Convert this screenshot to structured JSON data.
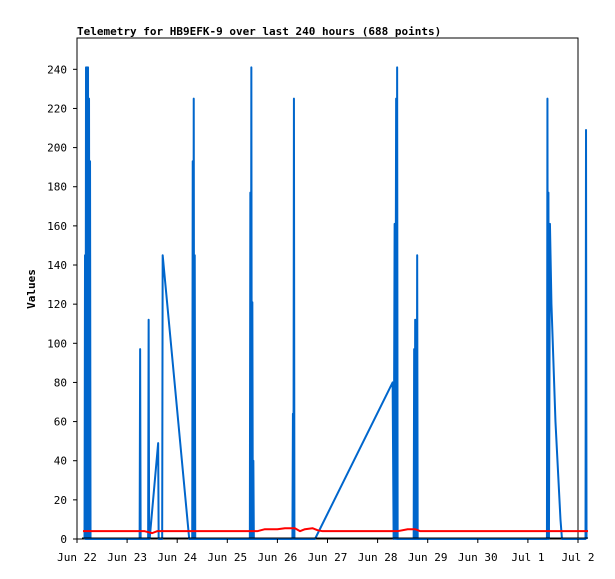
{
  "chart_data": {
    "type": "line",
    "title": "Telemetry for HB9EFK-9 over last 240 hours (688 points)",
    "ylabel": "Values",
    "xlabel": "",
    "x_categories": [
      "Jun 22",
      "Jun 23",
      "Jun 24",
      "Jun 25",
      "Jun 26",
      "Jun 27",
      "Jun 28",
      "Jun 29",
      "Jun 30",
      "Jul 1",
      "Jul 2"
    ],
    "xlim": [
      0,
      10
    ],
    "ylim": [
      0,
      256
    ],
    "yticks": [
      0,
      20,
      40,
      60,
      80,
      100,
      120,
      140,
      160,
      180,
      200,
      220,
      240
    ],
    "grid": false,
    "legend": "none",
    "series": [
      {
        "color": "#0066cc",
        "points": [
          [
            0.15,
            0
          ],
          [
            0.16,
            145
          ],
          [
            0.17,
            0
          ],
          [
            0.18,
            241
          ],
          [
            0.19,
            0
          ],
          [
            0.2,
            241
          ],
          [
            0.21,
            0
          ],
          [
            0.22,
            241
          ],
          [
            0.23,
            0
          ],
          [
            0.24,
            225
          ],
          [
            0.25,
            0
          ],
          [
            0.26,
            193
          ],
          [
            0.27,
            0
          ],
          [
            1.25,
            0
          ],
          [
            1.26,
            97
          ],
          [
            1.27,
            0
          ],
          [
            1.42,
            0
          ],
          [
            1.43,
            112
          ],
          [
            1.44,
            0
          ],
          [
            1.45,
            0
          ],
          [
            1.62,
            49
          ],
          [
            1.63,
            0
          ],
          [
            1.7,
            0
          ],
          [
            1.71,
            145
          ],
          [
            2.24,
            0
          ],
          [
            2.3,
            0
          ],
          [
            2.31,
            193
          ],
          [
            2.32,
            0
          ],
          [
            2.33,
            225
          ],
          [
            2.34,
            0
          ],
          [
            2.35,
            145
          ],
          [
            2.36,
            0
          ],
          [
            3.45,
            0
          ],
          [
            3.46,
            177
          ],
          [
            3.47,
            0
          ],
          [
            3.48,
            241
          ],
          [
            3.49,
            0
          ],
          [
            3.5,
            121
          ],
          [
            3.51,
            0
          ],
          [
            3.52,
            40
          ],
          [
            3.53,
            0
          ],
          [
            4.3,
            0
          ],
          [
            4.31,
            64
          ],
          [
            4.32,
            0
          ],
          [
            4.33,
            225
          ],
          [
            4.34,
            0
          ],
          [
            4.75,
            0
          ],
          [
            6.3,
            80
          ],
          [
            6.32,
            0
          ],
          [
            6.34,
            161
          ],
          [
            6.35,
            0
          ],
          [
            6.37,
            225
          ],
          [
            6.38,
            0
          ],
          [
            6.39,
            241
          ],
          [
            6.4,
            0
          ],
          [
            6.72,
            0
          ],
          [
            6.73,
            97
          ],
          [
            6.74,
            0
          ],
          [
            6.75,
            112
          ],
          [
            6.76,
            0
          ],
          [
            6.77,
            73
          ],
          [
            6.78,
            0
          ],
          [
            6.79,
            145
          ],
          [
            6.8,
            0
          ],
          [
            9.38,
            0
          ],
          [
            9.39,
            225
          ],
          [
            9.4,
            0
          ],
          [
            9.41,
            177
          ],
          [
            9.42,
            0
          ],
          [
            9.44,
            161
          ],
          [
            9.47,
            120
          ],
          [
            9.55,
            60
          ],
          [
            9.65,
            10
          ],
          [
            9.68,
            0
          ],
          [
            10.15,
            0
          ],
          [
            10.16,
            209
          ],
          [
            10.17,
            0
          ]
        ]
      },
      {
        "color": "#ff0000",
        "points": [
          [
            0.12,
            4
          ],
          [
            1.35,
            4
          ],
          [
            1.5,
            3
          ],
          [
            1.6,
            4
          ],
          [
            3.3,
            4
          ],
          [
            3.6,
            4
          ],
          [
            3.75,
            5
          ],
          [
            4.0,
            5
          ],
          [
            4.15,
            5.5
          ],
          [
            4.35,
            5.5
          ],
          [
            4.45,
            4
          ],
          [
            4.55,
            5
          ],
          [
            4.7,
            5.5
          ],
          [
            4.8,
            4.5
          ],
          [
            4.9,
            4
          ],
          [
            6.4,
            4
          ],
          [
            6.6,
            5
          ],
          [
            6.75,
            5
          ],
          [
            6.85,
            4
          ],
          [
            10.2,
            4
          ]
        ]
      },
      {
        "color": "#000000",
        "points": [
          [
            0.1,
            0.5
          ],
          [
            10.2,
            0.5
          ]
        ]
      }
    ]
  }
}
